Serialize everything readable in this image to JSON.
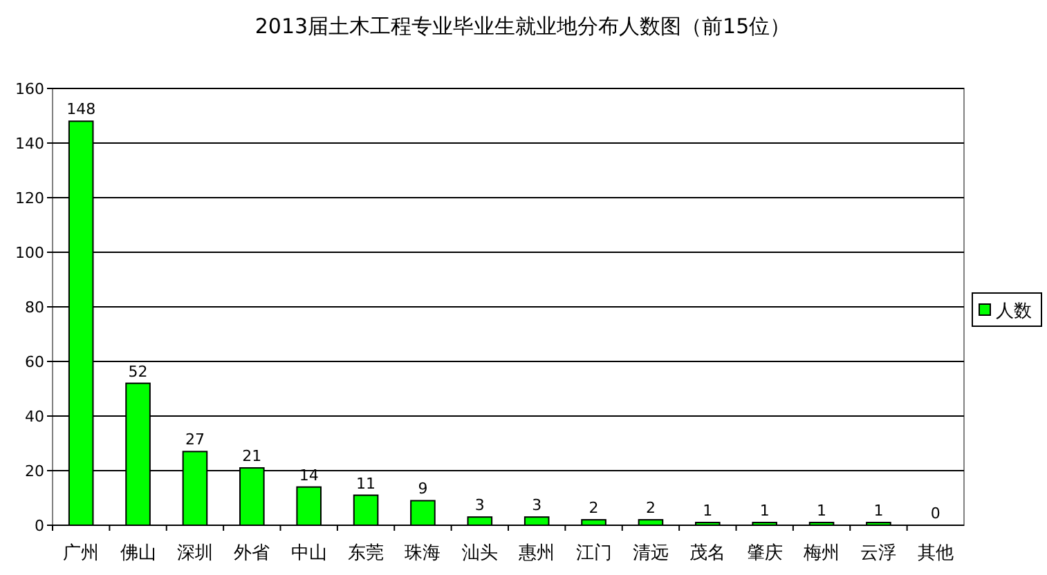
{
  "chart_data": {
    "type": "bar",
    "title": "2013届土木工程专业毕业生就业地分布人数图（前15位）",
    "categories": [
      "广州",
      "佛山",
      "深圳",
      "外省",
      "中山",
      "东莞",
      "珠海",
      "汕头",
      "惠州",
      "江门",
      "清远",
      "茂名",
      "肇庆",
      "梅州",
      "云浮",
      "其他"
    ],
    "series": [
      {
        "name": "人数",
        "color": "#00ff00",
        "values": [
          148,
          52,
          27,
          21,
          14,
          11,
          9,
          3,
          3,
          2,
          2,
          1,
          1,
          1,
          1,
          0
        ]
      }
    ],
    "ylim": [
      0,
      160
    ],
    "yticks": [
      0,
      20,
      40,
      60,
      80,
      100,
      120,
      140,
      160
    ],
    "grid": "y",
    "legend": "right",
    "data_labels": true
  }
}
